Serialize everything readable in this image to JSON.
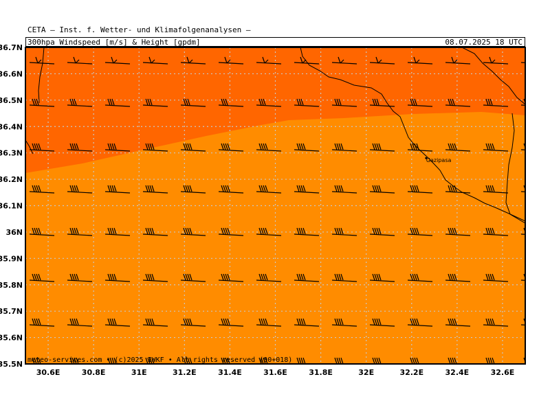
{
  "header": {
    "organization": "CETA – Inst. f. Wetter- und Klimafolgenanalysen –",
    "parameter": "300hpa_Windspeed_[m/s]_&_Height_[gpdm]",
    "datetime": "08.07.2025 18 UTC"
  },
  "colors": {
    "band_upper": "#ff6600",
    "band_lower": "#ff8c00",
    "grid": "#c8c8c8",
    "coast": "#000000"
  },
  "map": {
    "lon_range": [
      30.5,
      32.7
    ],
    "lat_range": [
      35.5,
      36.7
    ],
    "lon_ticks": [
      "30.6E",
      "30.8E",
      "31E",
      "31.2E",
      "31.4E",
      "31.6E",
      "31.8E",
      "32E",
      "32.2E",
      "32.4E",
      "32.6E"
    ],
    "lon_tick_values": [
      30.6,
      30.8,
      31.0,
      31.2,
      31.4,
      31.6,
      31.8,
      32.0,
      32.2,
      32.4,
      32.6
    ],
    "lat_ticks": [
      "36.7N",
      "36.6N",
      "36.5N",
      "36.4N",
      "36.3N",
      "36.2N",
      "36.1N",
      "36N",
      "35.9N",
      "35.8N",
      "35.7N",
      "35.6N",
      "35.5N"
    ],
    "lat_tick_values": [
      36.7,
      36.6,
      36.5,
      36.4,
      36.3,
      36.2,
      36.1,
      36.0,
      35.9,
      35.8,
      35.7,
      35.6,
      35.5
    ],
    "place": {
      "name": "Gazipasa",
      "lon": 32.3,
      "lat": 36.27
    },
    "copyright": "meteo-services.com • (c)2025 IWKF • All rights reserved (00+018)"
  }
}
